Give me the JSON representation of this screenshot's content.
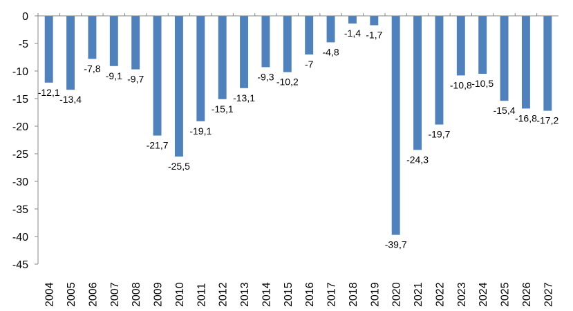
{
  "chart_data": {
    "type": "bar",
    "title": "",
    "xlabel": "",
    "ylabel": "",
    "grid": false,
    "legend": "none",
    "ylim": [
      -45,
      0
    ],
    "yticks": [
      "0",
      "-5",
      "-10",
      "-15",
      "-20",
      "-25",
      "-30",
      "-35",
      "-40",
      "-45"
    ],
    "bar_color": "#4F81BD",
    "categories": [
      "2004",
      "2005",
      "2006",
      "2007",
      "2008",
      "2009",
      "2010",
      "2011",
      "2012",
      "2013",
      "2014",
      "2015",
      "2016",
      "2017",
      "2018",
      "2019",
      "2020",
      "2021",
      "2022",
      "2023",
      "2024",
      "2025",
      "2026",
      "2027"
    ],
    "values": [
      -12.1,
      -13.4,
      -7.8,
      -9.1,
      -9.7,
      -21.7,
      -25.5,
      -19.1,
      -15.1,
      -13.1,
      -9.3,
      -10.2,
      -7,
      -4.8,
      -1.4,
      -1.7,
      -39.7,
      -24.3,
      -19.7,
      -10.8,
      -10.5,
      -15.4,
      -16.8,
      -17.2
    ],
    "data_labels": [
      "-12,1",
      "-13,4",
      "-7,8",
      "-9,1",
      "-9,7",
      "-21,7",
      "-25,5",
      "-19,1",
      "-15,1",
      "-13,1",
      "-9,3",
      "-10,2",
      "-7",
      "-4,8",
      "-1,4",
      "-1,7",
      "-39,7",
      "-24,3",
      "-19,7",
      "-10,8",
      "-10,5",
      "-15,4",
      "-16,8",
      "-17,2"
    ]
  }
}
